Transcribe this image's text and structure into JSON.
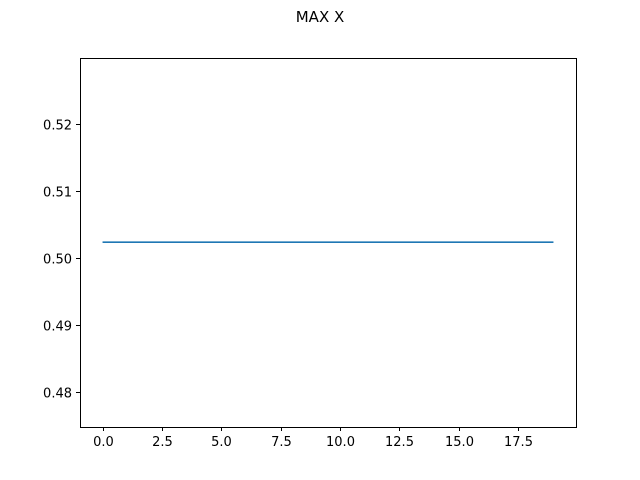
{
  "figure": {
    "suptitle": "MAX X",
    "background": "#ffffff"
  },
  "chart_data": {
    "type": "line",
    "title": "MAX X",
    "xlabel": "",
    "ylabel": "",
    "xlim": [
      -0.95,
      19.95
    ],
    "ylim": [
      0.4747,
      0.5298
    ],
    "xticks": [
      0.0,
      2.5,
      5.0,
      7.5,
      10.0,
      12.5,
      15.0,
      17.5
    ],
    "xtick_labels": [
      "0.0",
      "2.5",
      "5.0",
      "7.5",
      "10.0",
      "12.5",
      "15.0",
      "17.5"
    ],
    "yticks": [
      0.48,
      0.49,
      0.5,
      0.51,
      0.52
    ],
    "ytick_labels": [
      "0.48",
      "0.49",
      "0.50",
      "0.51",
      "0.52"
    ],
    "grid": false,
    "legend": "none",
    "series": [
      {
        "color": "#1f77b4",
        "x": [
          0,
          1,
          2,
          3,
          4,
          5,
          6,
          7,
          8,
          9,
          10,
          11,
          12,
          13,
          14,
          15,
          16,
          17,
          18,
          19
        ],
        "y": [
          0.5023,
          0.5023,
          0.5023,
          0.5023,
          0.5023,
          0.5023,
          0.5023,
          0.5023,
          0.5023,
          0.5023,
          0.5023,
          0.5023,
          0.5023,
          0.5023,
          0.5023,
          0.5023,
          0.5023,
          0.5023,
          0.5023,
          0.5023
        ]
      }
    ]
  }
}
